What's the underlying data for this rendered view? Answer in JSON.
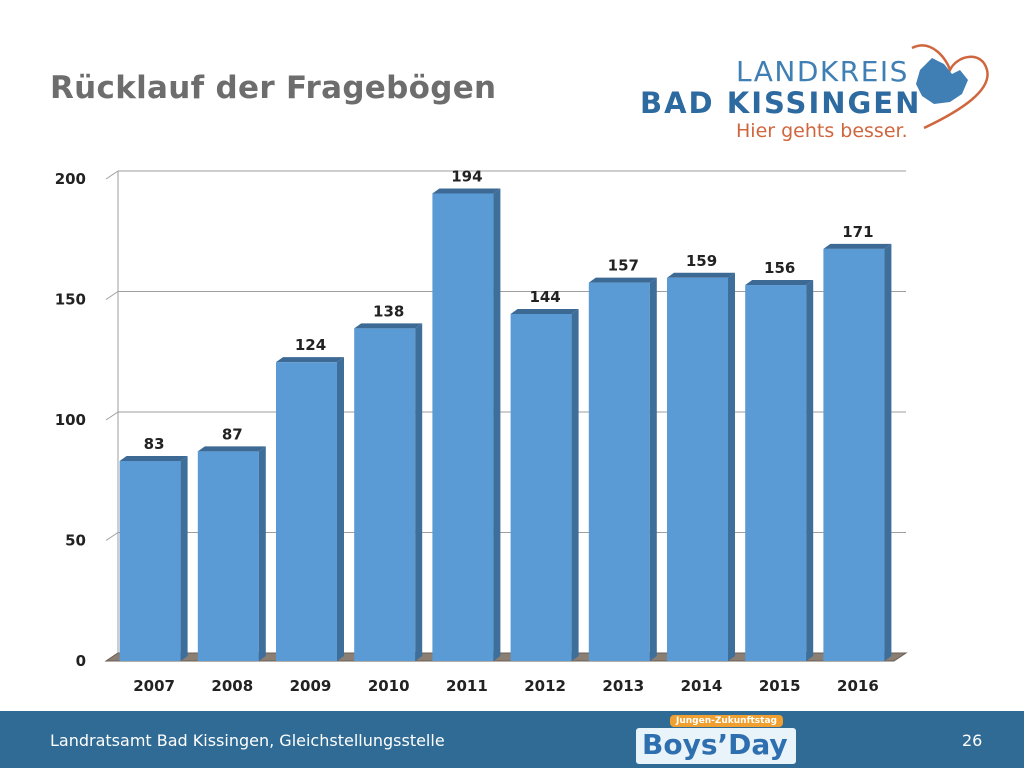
{
  "slide": {
    "title": "Rücklauf der Fragebögen",
    "page_number": "26",
    "footer_text": "Landratsamt Bad Kissingen, Gleichstellungsstelle"
  },
  "logo": {
    "line1": "LANDKREIS",
    "line2": "BAD KISSINGEN",
    "slogan": "Hier gehts besser."
  },
  "boys_day": {
    "subtitle": "Jungen-Zukunftstag",
    "name": "Boys’Day"
  },
  "colors": {
    "bar": "#5b9bd5",
    "bar_side": "#3e6e9a",
    "bar_top": "#3d6a95",
    "footer": "#2f6b94",
    "grid": "#9e9e9e"
  },
  "chart_data": {
    "type": "bar",
    "categories": [
      "2007",
      "2008",
      "2009",
      "2010",
      "2011",
      "2012",
      "2013",
      "2014",
      "2015",
      "2016"
    ],
    "values": [
      83,
      87,
      124,
      138,
      194,
      144,
      157,
      159,
      156,
      171
    ],
    "title": "",
    "xlabel": "",
    "ylabel": "",
    "ylim": [
      0,
      200
    ],
    "yticks": [
      0,
      50,
      100,
      150,
      200
    ],
    "grid": true,
    "legend": "none",
    "data_labels": true,
    "style": "3d"
  }
}
